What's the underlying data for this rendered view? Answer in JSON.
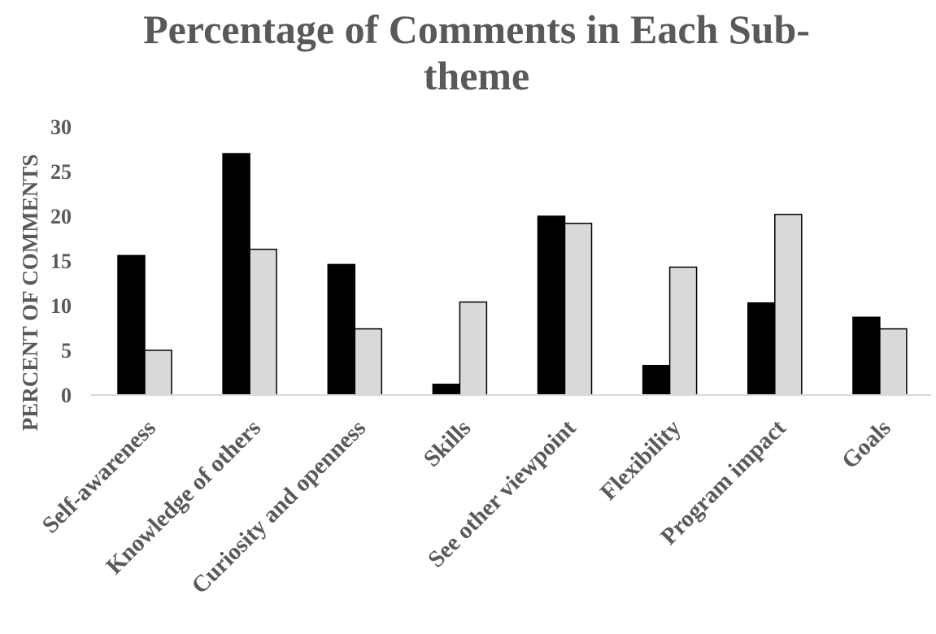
{
  "chart_data": {
    "type": "bar",
    "title_lines": [
      "Percentage of Comments in Each Sub-",
      "theme"
    ],
    "ylabel": "PERCENT OF COMMENTS",
    "xlabel": "",
    "ylim": [
      0,
      30
    ],
    "yticks": [
      0,
      5,
      10,
      15,
      20,
      25,
      30
    ],
    "grid": false,
    "legend": "none",
    "categories": [
      "Self-awareness",
      "Knowledge of others",
      "Curiosity and openness",
      "Skills",
      "See other viewpoint",
      "Flexibility",
      "Program impact",
      "Goals"
    ],
    "series": [
      {
        "color": "#000000",
        "values": [
          15.6,
          27.0,
          14.6,
          1.2,
          20.0,
          3.3,
          10.3,
          8.7
        ]
      },
      {
        "color": "#d9d9d9",
        "values": [
          5.0,
          16.3,
          7.4,
          10.4,
          19.2,
          14.3,
          20.2,
          7.4
        ]
      }
    ],
    "axis_color": "#d9d9d9",
    "text_color": "#595959"
  }
}
